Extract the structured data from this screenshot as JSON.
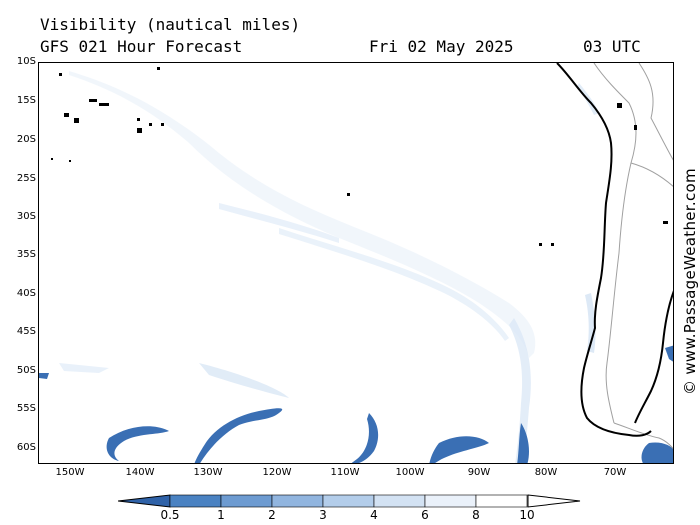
{
  "header": {
    "title": "Visibility (nautical miles)",
    "subtitle": "GFS 021 Hour Forecast",
    "date": "Fri 02 May 2025",
    "time": "03 UTC"
  },
  "axes": {
    "lat_labels": [
      "10S",
      "15S",
      "20S",
      "25S",
      "30S",
      "35S",
      "40S",
      "45S",
      "50S",
      "55S",
      "60S"
    ],
    "lon_labels": [
      "150W",
      "140W",
      "130W",
      "120W",
      "110W",
      "100W",
      "90W",
      "80W",
      "70W"
    ]
  },
  "legend": {
    "labels": [
      "0.5",
      "1",
      "2",
      "3",
      "4",
      "6",
      "8",
      "10"
    ],
    "colors": [
      "#3a6fb4",
      "#4a82c2",
      "#6d9bd1",
      "#91b5df",
      "#b3cdea",
      "#d3e2f3",
      "#eaf1fa",
      "#ffffff"
    ],
    "low_arrow_color": "#2f62a8",
    "high_arrow_color": "#ffffff"
  },
  "map": {
    "coast_color": "#000000",
    "border_color": "#a0a0a0",
    "low_vis_color": "#3a6fb4",
    "light_vis_color": "#c9dcf1"
  },
  "credit": "© www.PassageWeather.com"
}
